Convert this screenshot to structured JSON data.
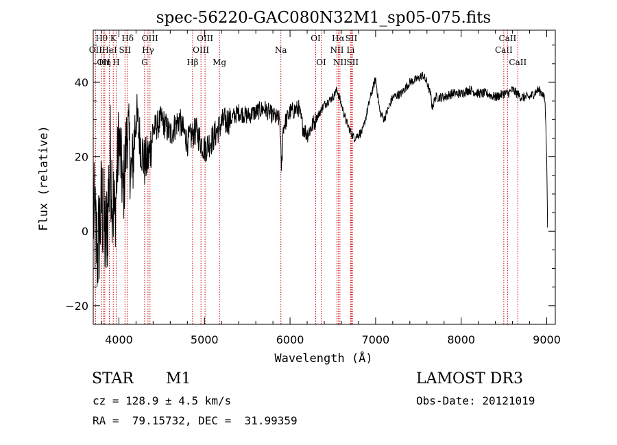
{
  "chart_data": {
    "type": "line",
    "title": "spec-56220-GAC080N32M1_sp05-075.fits",
    "xlabel": "Wavelength (Å)",
    "ylabel": "Flux (relative)",
    "xlim": [
      3700,
      9100
    ],
    "ylim": [
      -25,
      54
    ],
    "xticks": [
      4000,
      5000,
      6000,
      7000,
      8000,
      9000
    ],
    "yticks": [
      -20,
      0,
      20,
      40
    ],
    "series": [
      {
        "name": "spectrum",
        "x": [
          3700,
          3750,
          3800,
          3850,
          3900,
          3950,
          4000,
          4050,
          4100,
          4150,
          4200,
          4250,
          4300,
          4350,
          4400,
          4500,
          4600,
          4700,
          4800,
          4900,
          5000,
          5100,
          5200,
          5300,
          5400,
          5500,
          5600,
          5700,
          5800,
          5880,
          5900,
          5920,
          6000,
          6100,
          6150,
          6200,
          6300,
          6400,
          6500,
          6550,
          6600,
          6650,
          6700,
          6750,
          6800,
          6850,
          6900,
          6950,
          7000,
          7050,
          7100,
          7150,
          7200,
          7300,
          7400,
          7500,
          7550,
          7600,
          7650,
          7660,
          7700,
          7800,
          7900,
          8000,
          8100,
          8200,
          8300,
          8400,
          8500,
          8550,
          8600,
          8700,
          8800,
          8900,
          8950,
          8980,
          9000,
          9010
        ],
        "y": [
          5,
          -6,
          8,
          -4,
          20,
          2,
          26,
          10,
          28,
          14,
          32,
          24,
          18,
          20,
          27,
          30,
          26,
          30,
          24,
          27,
          22,
          25,
          29,
          30,
          32,
          31,
          32,
          33,
          31,
          30,
          16,
          28,
          32,
          33,
          28,
          26,
          30,
          34,
          36,
          38,
          34,
          30,
          27,
          25,
          26,
          27,
          32,
          37,
          41,
          32,
          30,
          33,
          36,
          37,
          40,
          41,
          42,
          40,
          36,
          33,
          36,
          36,
          37,
          37,
          38,
          37,
          37,
          36,
          37,
          37,
          38,
          36,
          36,
          38,
          37,
          35,
          20,
          0
        ]
      }
    ],
    "lines": [
      {
        "w": 3727,
        "label": "OII",
        "row": 2
      },
      {
        "w": 3798,
        "label": "Hθ",
        "row": 1
      },
      {
        "w": 3820,
        "label": "OII",
        "row": 3
      },
      {
        "w": 3835,
        "label": "Hη",
        "row": 3
      },
      {
        "w": 3889,
        "label": "HeI",
        "row": 2
      },
      {
        "w": 3934,
        "label": "K",
        "row": 1
      },
      {
        "w": 3968,
        "label": "H",
        "row": 3
      },
      {
        "w": 4071,
        "label": "SII",
        "row": 2
      },
      {
        "w": 4102,
        "label": "Hδ",
        "row": 1
      },
      {
        "w": 4300,
        "label": "G",
        "row": 3
      },
      {
        "w": 4340,
        "label": "Hγ",
        "row": 2
      },
      {
        "w": 4363,
        "label": "OIII",
        "row": 1
      },
      {
        "w": 4861,
        "label": "Hβ",
        "row": 3
      },
      {
        "w": 4959,
        "label": "OIII",
        "row": 2
      },
      {
        "w": 5007,
        "label": "OIII",
        "row": 1
      },
      {
        "w": 5175,
        "label": "Mg",
        "row": 3
      },
      {
        "w": 5893,
        "label": "Na",
        "row": 2
      },
      {
        "w": 6300,
        "label": "OI",
        "row": 1
      },
      {
        "w": 6364,
        "label": "OI",
        "row": 3
      },
      {
        "w": 6548,
        "label": "NII",
        "row": 2
      },
      {
        "w": 6563,
        "label": "Hα",
        "row": 1
      },
      {
        "w": 6583,
        "label": "NII",
        "row": 3
      },
      {
        "w": 6708,
        "label": "Li",
        "row": 2
      },
      {
        "w": 6716,
        "label": "SII",
        "row": 1
      },
      {
        "w": 6731,
        "label": "SII",
        "row": 3
      },
      {
        "w": 8498,
        "label": "CaII",
        "row": 2
      },
      {
        "w": 8542,
        "label": "CaII",
        "row": 1
      },
      {
        "w": 8662,
        "label": "CaII",
        "row": 3
      }
    ]
  },
  "info": {
    "object_type": "STAR",
    "subclass": "M1",
    "survey": "LAMOST DR3",
    "cz": "cz = 128.9 ± 4.5 km/s",
    "obs_date": "Obs-Date: 20121019",
    "coords": "RA =  79.15732, DEC =  31.99359"
  },
  "colors": {
    "spectrum": "#000000",
    "line_marker": "#cc0000",
    "axis": "#000000"
  }
}
